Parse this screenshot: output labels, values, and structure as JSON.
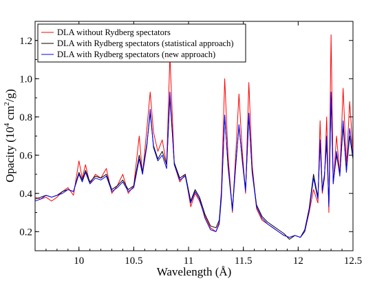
{
  "chart_data": {
    "type": "line",
    "title": "",
    "xlabel": "Wavelength (Å)",
    "ylabel": "Opacity (10⁴ cm²/g)",
    "xlim": [
      9.6,
      12.5
    ],
    "ylim": [
      0.1,
      1.3
    ],
    "x_ticks": [
      "10",
      "10.5",
      "11",
      "11.5",
      "12",
      "12.5"
    ],
    "y_ticks": [
      "0.2",
      "0.4",
      "0.6",
      "0.8",
      "1.0",
      "1.2"
    ],
    "grid": false,
    "legend_position": "top-left",
    "series": [
      {
        "name": "DLA without Rydberg spectators",
        "color": "#ff0000",
        "points": [
          [
            9.6,
            0.38
          ],
          [
            9.65,
            0.37
          ],
          [
            9.7,
            0.38
          ],
          [
            9.75,
            0.36
          ],
          [
            9.8,
            0.38
          ],
          [
            9.85,
            0.41
          ],
          [
            9.9,
            0.43
          ],
          [
            9.95,
            0.39
          ],
          [
            10.0,
            0.57
          ],
          [
            10.03,
            0.48
          ],
          [
            10.06,
            0.55
          ],
          [
            10.1,
            0.45
          ],
          [
            10.15,
            0.5
          ],
          [
            10.2,
            0.48
          ],
          [
            10.25,
            0.53
          ],
          [
            10.3,
            0.4
          ],
          [
            10.35,
            0.44
          ],
          [
            10.4,
            0.5
          ],
          [
            10.45,
            0.4
          ],
          [
            10.5,
            0.44
          ],
          [
            10.55,
            0.7
          ],
          [
            10.58,
            0.5
          ],
          [
            10.62,
            0.74
          ],
          [
            10.65,
            0.93
          ],
          [
            10.68,
            0.72
          ],
          [
            10.72,
            0.62
          ],
          [
            10.76,
            0.68
          ],
          [
            10.8,
            0.55
          ],
          [
            10.83,
            1.12
          ],
          [
            10.87,
            0.55
          ],
          [
            10.92,
            0.46
          ],
          [
            10.97,
            0.5
          ],
          [
            11.02,
            0.33
          ],
          [
            11.06,
            0.4
          ],
          [
            11.1,
            0.36
          ],
          [
            11.15,
            0.28
          ],
          [
            11.2,
            0.22
          ],
          [
            11.25,
            0.2
          ],
          [
            11.28,
            0.25
          ],
          [
            11.3,
            0.42
          ],
          [
            11.33,
            1.0
          ],
          [
            11.36,
            0.6
          ],
          [
            11.4,
            0.3
          ],
          [
            11.43,
            0.6
          ],
          [
            11.46,
            0.92
          ],
          [
            11.49,
            0.62
          ],
          [
            11.52,
            0.4
          ],
          [
            11.55,
            0.98
          ],
          [
            11.58,
            0.55
          ],
          [
            11.62,
            0.32
          ],
          [
            11.67,
            0.26
          ],
          [
            11.72,
            0.24
          ],
          [
            11.77,
            0.22
          ],
          [
            11.82,
            0.2
          ],
          [
            11.87,
            0.18
          ],
          [
            11.92,
            0.17
          ],
          [
            11.97,
            0.18
          ],
          [
            12.02,
            0.17
          ],
          [
            12.06,
            0.2
          ],
          [
            12.1,
            0.3
          ],
          [
            12.14,
            0.42
          ],
          [
            12.18,
            0.35
          ],
          [
            12.2,
            0.78
          ],
          [
            12.22,
            0.4
          ],
          [
            12.24,
            0.48
          ],
          [
            12.26,
            0.8
          ],
          [
            12.28,
            0.3
          ],
          [
            12.3,
            1.23
          ],
          [
            12.32,
            0.45
          ],
          [
            12.35,
            0.7
          ],
          [
            12.38,
            0.5
          ],
          [
            12.41,
            0.95
          ],
          [
            12.44,
            0.55
          ],
          [
            12.47,
            0.88
          ],
          [
            12.5,
            0.62
          ]
        ]
      },
      {
        "name": "DLA with Rydberg spectators (statistical approach)",
        "color": "#000000",
        "points": [
          [
            9.6,
            0.37
          ],
          [
            9.65,
            0.38
          ],
          [
            9.7,
            0.39
          ],
          [
            9.75,
            0.38
          ],
          [
            9.8,
            0.39
          ],
          [
            9.85,
            0.41
          ],
          [
            9.9,
            0.42
          ],
          [
            9.95,
            0.41
          ],
          [
            10.0,
            0.51
          ],
          [
            10.03,
            0.47
          ],
          [
            10.06,
            0.52
          ],
          [
            10.1,
            0.46
          ],
          [
            10.15,
            0.49
          ],
          [
            10.2,
            0.48
          ],
          [
            10.25,
            0.5
          ],
          [
            10.3,
            0.42
          ],
          [
            10.35,
            0.44
          ],
          [
            10.4,
            0.47
          ],
          [
            10.45,
            0.42
          ],
          [
            10.5,
            0.44
          ],
          [
            10.55,
            0.6
          ],
          [
            10.58,
            0.51
          ],
          [
            10.62,
            0.66
          ],
          [
            10.65,
            0.82
          ],
          [
            10.68,
            0.65
          ],
          [
            10.72,
            0.58
          ],
          [
            10.76,
            0.62
          ],
          [
            10.8,
            0.55
          ],
          [
            10.83,
            0.9
          ],
          [
            10.87,
            0.56
          ],
          [
            10.92,
            0.48
          ],
          [
            10.97,
            0.5
          ],
          [
            11.02,
            0.36
          ],
          [
            11.06,
            0.42
          ],
          [
            11.1,
            0.38
          ],
          [
            11.15,
            0.29
          ],
          [
            11.2,
            0.23
          ],
          [
            11.25,
            0.22
          ],
          [
            11.28,
            0.26
          ],
          [
            11.3,
            0.4
          ],
          [
            11.33,
            0.8
          ],
          [
            11.36,
            0.55
          ],
          [
            11.4,
            0.32
          ],
          [
            11.43,
            0.55
          ],
          [
            11.46,
            0.75
          ],
          [
            11.49,
            0.58
          ],
          [
            11.52,
            0.42
          ],
          [
            11.55,
            0.8
          ],
          [
            11.58,
            0.52
          ],
          [
            11.62,
            0.34
          ],
          [
            11.67,
            0.28
          ],
          [
            11.72,
            0.25
          ],
          [
            11.77,
            0.23
          ],
          [
            11.82,
            0.21
          ],
          [
            11.87,
            0.19
          ],
          [
            11.92,
            0.16
          ],
          [
            11.97,
            0.18
          ],
          [
            12.02,
            0.17
          ],
          [
            12.06,
            0.21
          ],
          [
            12.1,
            0.32
          ],
          [
            12.14,
            0.5
          ],
          [
            12.18,
            0.38
          ],
          [
            12.2,
            0.66
          ],
          [
            12.22,
            0.42
          ],
          [
            12.24,
            0.5
          ],
          [
            12.26,
            0.66
          ],
          [
            12.28,
            0.34
          ],
          [
            12.3,
            0.9
          ],
          [
            12.32,
            0.46
          ],
          [
            12.35,
            0.6
          ],
          [
            12.38,
            0.5
          ],
          [
            12.41,
            0.75
          ],
          [
            12.44,
            0.52
          ],
          [
            12.47,
            0.7
          ],
          [
            12.5,
            0.58
          ]
        ]
      },
      {
        "name": "DLA with Rydberg spectators (new approach)",
        "color": "#0000ff",
        "points": [
          [
            9.6,
            0.36
          ],
          [
            9.65,
            0.37
          ],
          [
            9.7,
            0.39
          ],
          [
            9.75,
            0.38
          ],
          [
            9.8,
            0.39
          ],
          [
            9.85,
            0.4
          ],
          [
            9.9,
            0.42
          ],
          [
            9.95,
            0.41
          ],
          [
            10.0,
            0.5
          ],
          [
            10.03,
            0.46
          ],
          [
            10.06,
            0.51
          ],
          [
            10.1,
            0.45
          ],
          [
            10.15,
            0.48
          ],
          [
            10.2,
            0.47
          ],
          [
            10.25,
            0.49
          ],
          [
            10.3,
            0.41
          ],
          [
            10.35,
            0.43
          ],
          [
            10.4,
            0.46
          ],
          [
            10.45,
            0.41
          ],
          [
            10.5,
            0.43
          ],
          [
            10.55,
            0.58
          ],
          [
            10.58,
            0.5
          ],
          [
            10.62,
            0.65
          ],
          [
            10.65,
            0.84
          ],
          [
            10.68,
            0.64
          ],
          [
            10.72,
            0.57
          ],
          [
            10.76,
            0.6
          ],
          [
            10.8,
            0.53
          ],
          [
            10.83,
            0.93
          ],
          [
            10.87,
            0.55
          ],
          [
            10.92,
            0.47
          ],
          [
            10.97,
            0.49
          ],
          [
            11.02,
            0.35
          ],
          [
            11.06,
            0.41
          ],
          [
            11.1,
            0.37
          ],
          [
            11.15,
            0.27
          ],
          [
            11.2,
            0.21
          ],
          [
            11.25,
            0.2
          ],
          [
            11.28,
            0.24
          ],
          [
            11.3,
            0.38
          ],
          [
            11.33,
            0.81
          ],
          [
            11.36,
            0.54
          ],
          [
            11.4,
            0.31
          ],
          [
            11.43,
            0.54
          ],
          [
            11.46,
            0.76
          ],
          [
            11.49,
            0.57
          ],
          [
            11.52,
            0.41
          ],
          [
            11.55,
            0.82
          ],
          [
            11.58,
            0.51
          ],
          [
            11.62,
            0.33
          ],
          [
            11.67,
            0.27
          ],
          [
            11.72,
            0.24
          ],
          [
            11.77,
            0.22
          ],
          [
            11.82,
            0.2
          ],
          [
            11.87,
            0.18
          ],
          [
            11.92,
            0.17
          ],
          [
            11.97,
            0.18
          ],
          [
            12.02,
            0.17
          ],
          [
            12.06,
            0.2
          ],
          [
            12.1,
            0.31
          ],
          [
            12.14,
            0.48
          ],
          [
            12.18,
            0.37
          ],
          [
            12.2,
            0.68
          ],
          [
            12.22,
            0.41
          ],
          [
            12.24,
            0.49
          ],
          [
            12.26,
            0.7
          ],
          [
            12.28,
            0.33
          ],
          [
            12.3,
            0.93
          ],
          [
            12.32,
            0.45
          ],
          [
            12.35,
            0.62
          ],
          [
            12.38,
            0.49
          ],
          [
            12.41,
            0.78
          ],
          [
            12.44,
            0.51
          ],
          [
            12.47,
            0.74
          ],
          [
            12.5,
            0.6
          ]
        ]
      }
    ]
  }
}
